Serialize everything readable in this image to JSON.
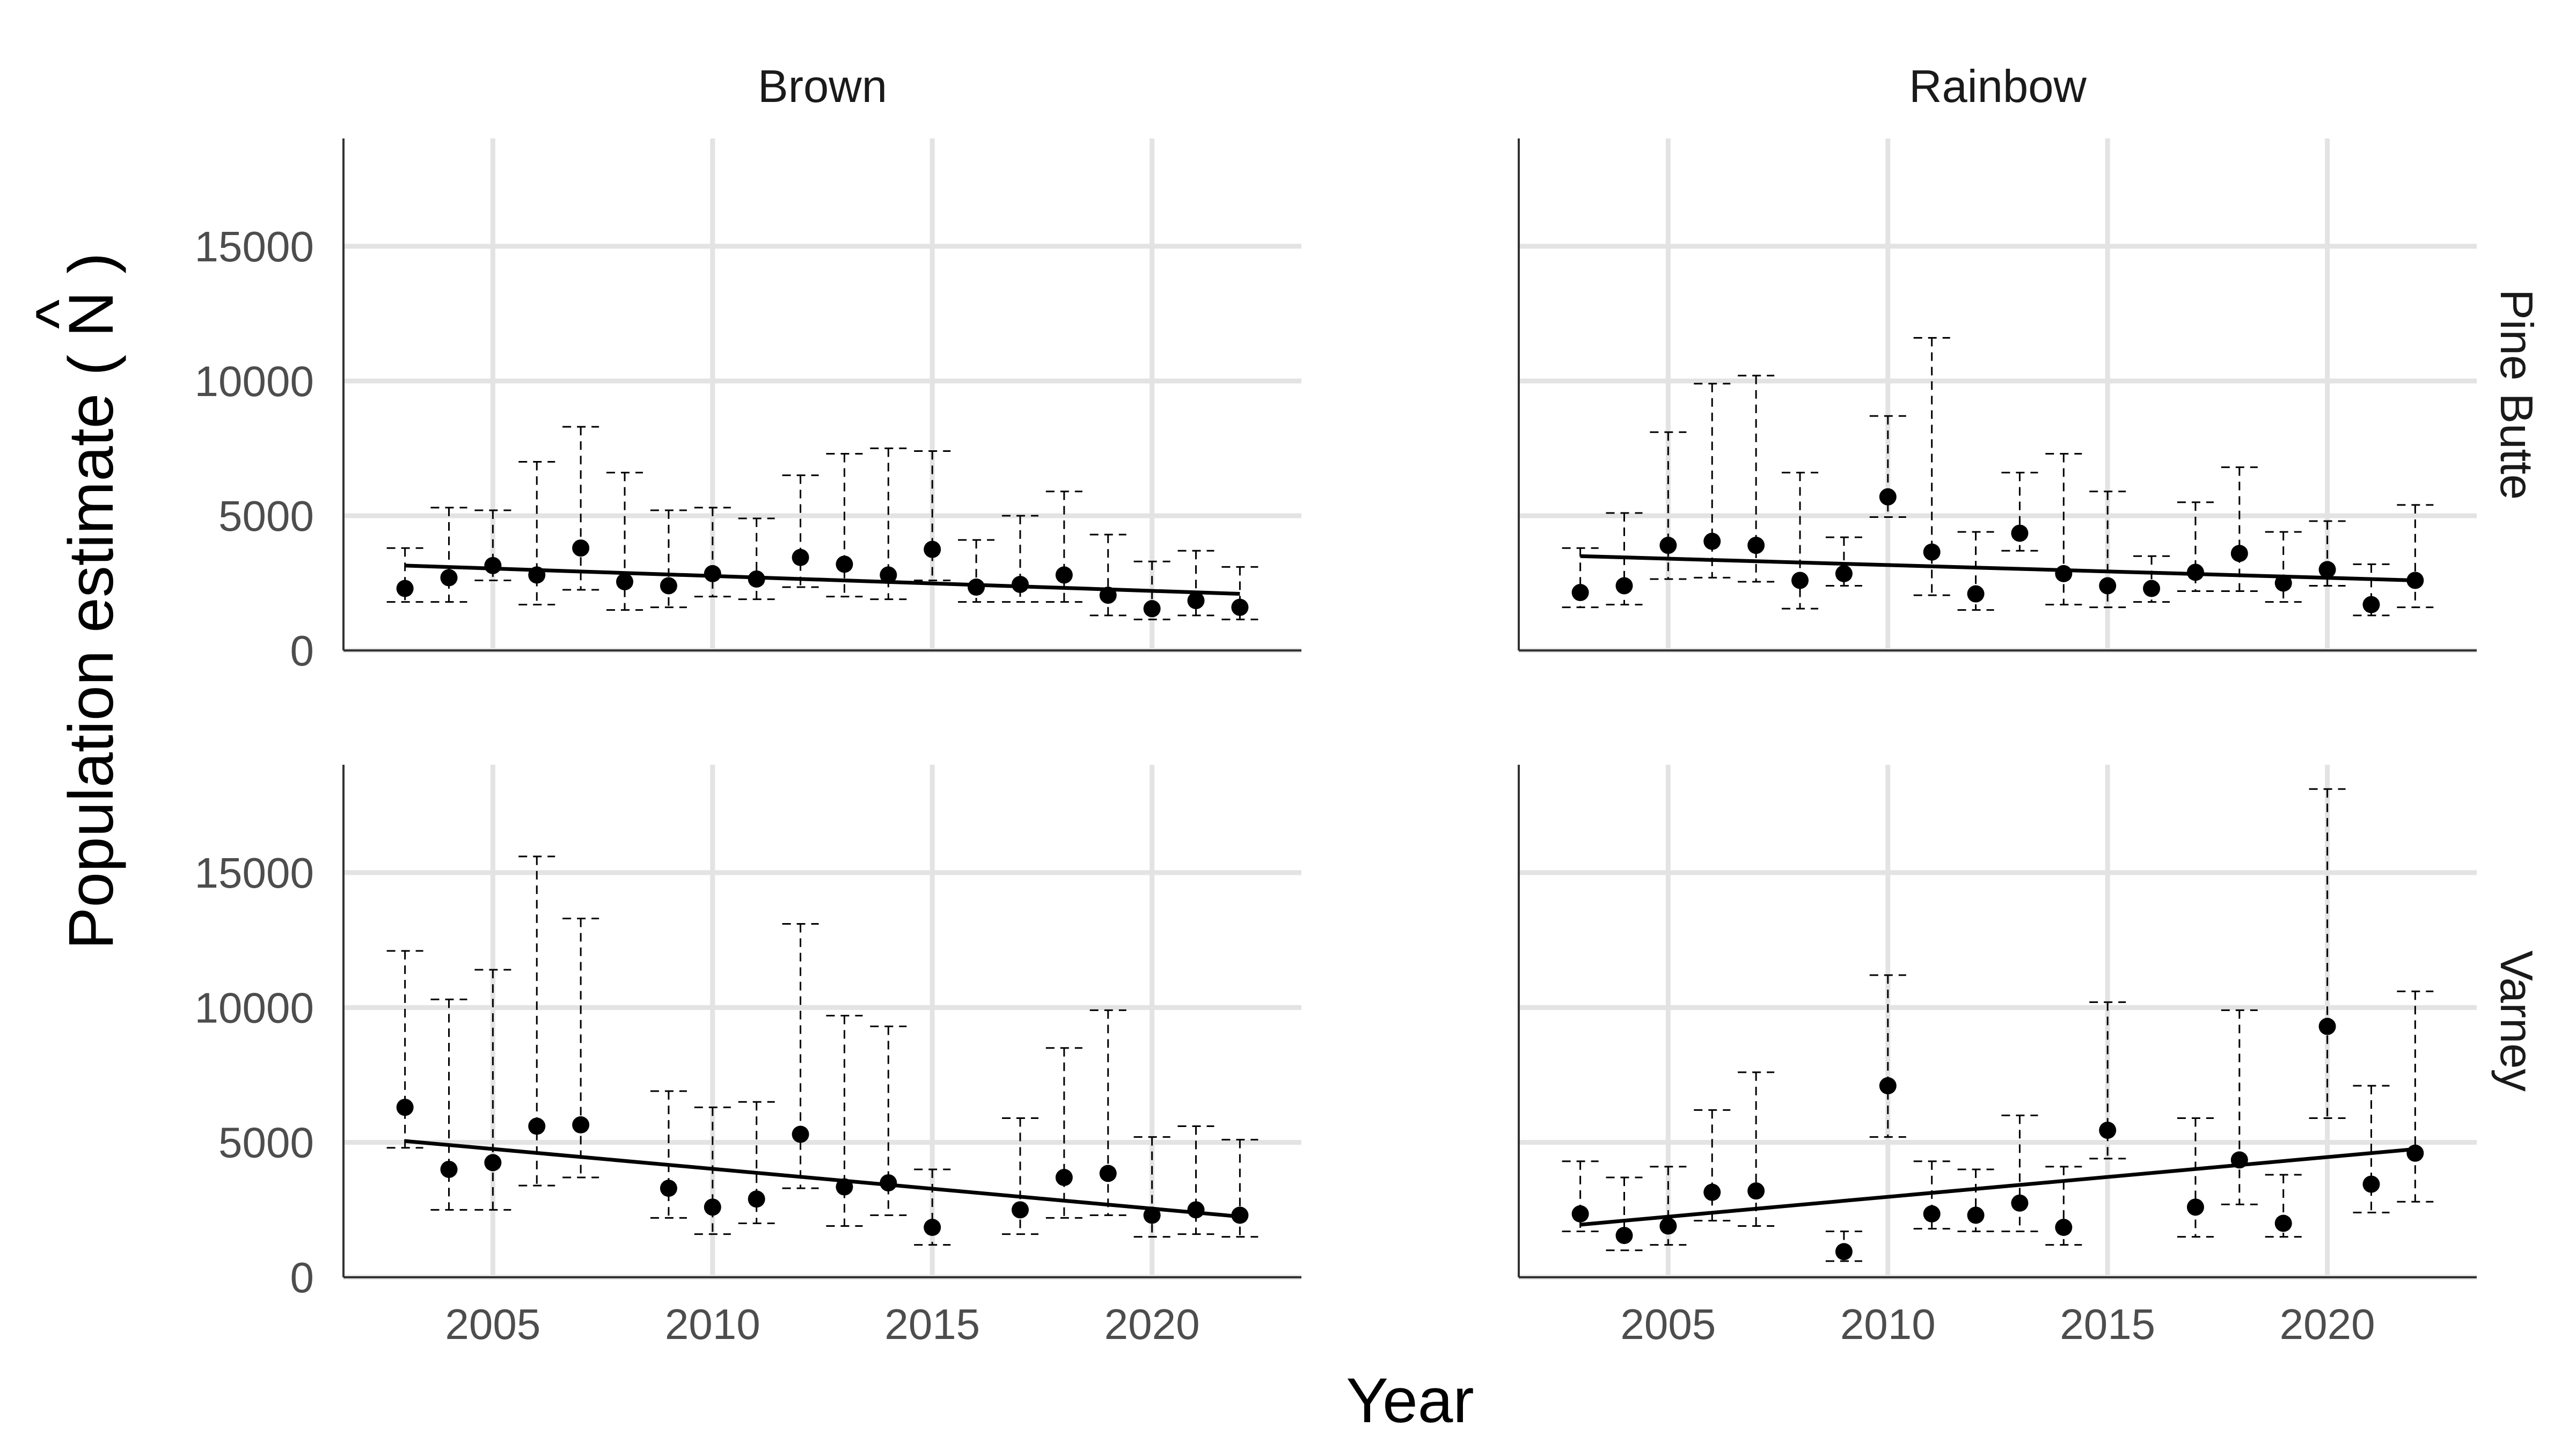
{
  "chart_data": {
    "type": "scatter",
    "xlabel": "Year",
    "ylabel": "Population estimate",
    "ylabel_symbol": "N",
    "ylabel_hat": "^",
    "ylabel_open": "( ",
    "ylabel_close": " )",
    "xlim": [
      2001.6,
      2023.4
    ],
    "ylim": [
      0,
      19000
    ],
    "x_ticks": [
      2005,
      2010,
      2015,
      2020
    ],
    "y_ticks": [
      0,
      5000,
      10000,
      15000
    ],
    "grid": true,
    "columns": [
      "Brown",
      "Rainbow"
    ],
    "rows": [
      "Pine Butte",
      "Varney"
    ],
    "panels": [
      {
        "column": "Brown",
        "row": "Pine Butte",
        "x": [
          2003,
          2004,
          2005,
          2006,
          2007,
          2008,
          2009,
          2010,
          2011,
          2012,
          2013,
          2014,
          2015,
          2016,
          2017,
          2018,
          2019,
          2020,
          2021,
          2022
        ],
        "y": [
          2300,
          2700,
          3150,
          2800,
          3800,
          2550,
          2400,
          2850,
          2650,
          3450,
          3200,
          2800,
          3750,
          2350,
          2450,
          2800,
          2050,
          1550,
          1850,
          1600
        ],
        "lower": [
          1800,
          1800,
          2600,
          1700,
          2250,
          1500,
          1600,
          2000,
          1900,
          2350,
          2000,
          1900,
          2600,
          1800,
          1800,
          1800,
          1300,
          1150,
          1300,
          1150
        ],
        "upper": [
          3800,
          5300,
          5200,
          7000,
          8300,
          6600,
          5200,
          5300,
          4900,
          6500,
          7300,
          7500,
          7400,
          4100,
          5000,
          5900,
          4300,
          3300,
          3700,
          3100
        ],
        "trend": [
          [
            2003,
            3150
          ],
          [
            2022,
            2100
          ]
        ]
      },
      {
        "column": "Rainbow",
        "row": "Pine Butte",
        "x": [
          2003,
          2004,
          2005,
          2006,
          2007,
          2008,
          2009,
          2010,
          2011,
          2012,
          2013,
          2014,
          2015,
          2016,
          2017,
          2018,
          2019,
          2020,
          2021,
          2022
        ],
        "y": [
          2150,
          2400,
          3900,
          4050,
          3900,
          2600,
          2850,
          5700,
          3650,
          2100,
          4350,
          2850,
          2400,
          2300,
          2900,
          3600,
          2500,
          3000,
          1700,
          2600
        ],
        "lower": [
          1600,
          1700,
          2650,
          2700,
          2550,
          1550,
          2400,
          4950,
          2050,
          1500,
          3700,
          1700,
          1600,
          1800,
          2200,
          2200,
          1800,
          2400,
          1300,
          1600
        ],
        "upper": [
          3800,
          5100,
          8100,
          9900,
          10200,
          6600,
          4200,
          8700,
          11600,
          4400,
          6600,
          7300,
          5900,
          3500,
          5500,
          6800,
          4400,
          4800,
          3200,
          5400
        ],
        "trend": [
          [
            2003,
            3500
          ],
          [
            2022,
            2600
          ]
        ]
      },
      {
        "column": "Brown",
        "row": "Varney",
        "x": [
          2003,
          2004,
          2005,
          2006,
          2007,
          2009,
          2010,
          2011,
          2012,
          2013,
          2014,
          2015,
          2017,
          2018,
          2019,
          2020,
          2021,
          2022
        ],
        "y": [
          6300,
          4000,
          4250,
          5600,
          5650,
          3300,
          2600,
          2900,
          5300,
          3350,
          3500,
          1850,
          2500,
          3700,
          3850,
          2300,
          2500,
          2300
        ],
        "lower": [
          4800,
          2500,
          2500,
          3400,
          3700,
          2200,
          1600,
          2000,
          3300,
          1900,
          2300,
          1200,
          1600,
          2200,
          2300,
          1500,
          1600,
          1500
        ],
        "upper": [
          12100,
          10300,
          11400,
          15600,
          13300,
          6900,
          6300,
          6500,
          13100,
          9700,
          9300,
          4000,
          5900,
          8500,
          9900,
          5200,
          5600,
          5100
        ],
        "trend": [
          [
            2003,
            5050
          ],
          [
            2022,
            2250
          ]
        ]
      },
      {
        "column": "Rainbow",
        "row": "Varney",
        "x": [
          2003,
          2004,
          2005,
          2006,
          2007,
          2009,
          2010,
          2011,
          2012,
          2013,
          2014,
          2015,
          2017,
          2018,
          2019,
          2020,
          2021,
          2022
        ],
        "y": [
          2350,
          1550,
          1900,
          3150,
          3200,
          950,
          7100,
          2350,
          2300,
          2750,
          1850,
          5450,
          2600,
          4350,
          2000,
          9300,
          3450,
          4600
        ],
        "lower": [
          1700,
          1000,
          1200,
          2100,
          1900,
          600,
          5200,
          1800,
          1700,
          1700,
          1200,
          4400,
          1500,
          2700,
          1500,
          5900,
          2400,
          2800
        ],
        "upper": [
          4300,
          3700,
          4100,
          6200,
          7600,
          1700,
          11200,
          4300,
          4000,
          6000,
          4100,
          10200,
          5900,
          9900,
          3800,
          18100,
          7100,
          10600
        ],
        "trend": [
          [
            2003,
            1950
          ],
          [
            2022,
            4750
          ]
        ]
      }
    ]
  }
}
